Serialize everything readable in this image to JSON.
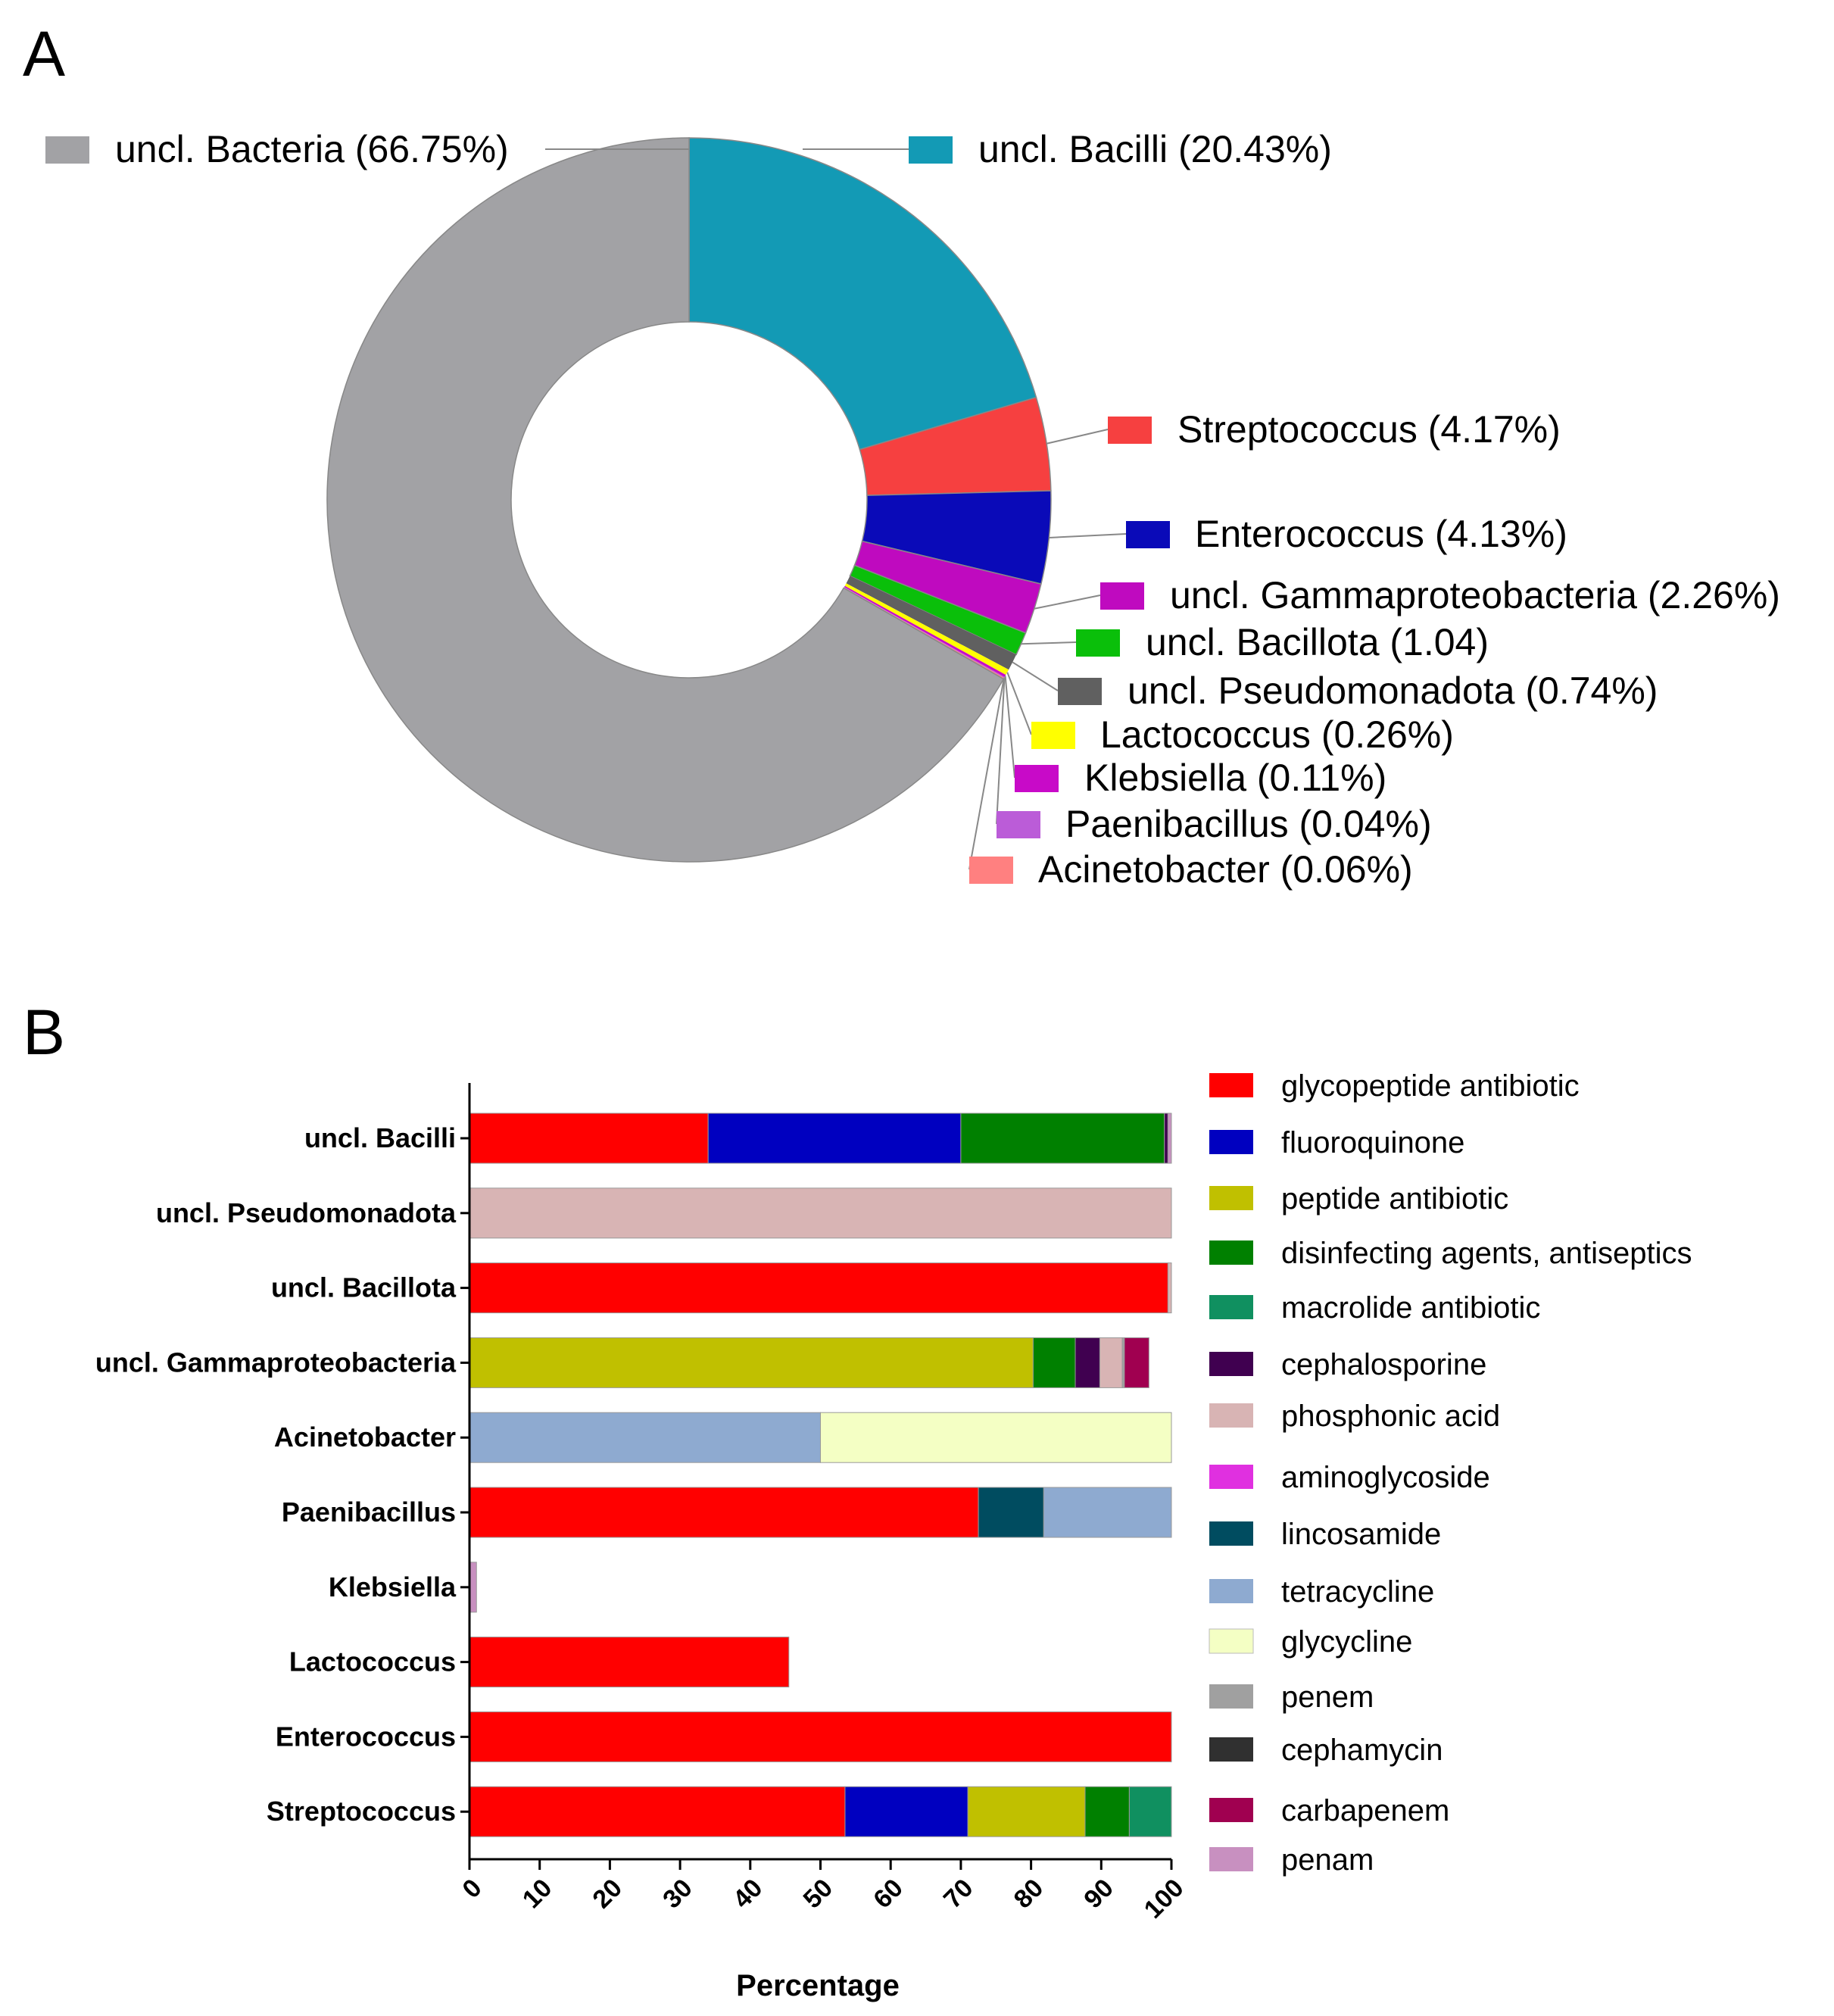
{
  "chart_data": [
    {
      "panel": "A",
      "type": "pie",
      "donut": true,
      "slices": [
        {
          "label": "uncl. Bacilli (20.43%)",
          "name": "uncl. Bacilli",
          "value": 20.43,
          "color": "#139ab5"
        },
        {
          "label": "Streptococcus (4.17%)",
          "name": "Streptococcus",
          "value": 4.17,
          "color": "#f64040"
        },
        {
          "label": "Enterococcus (4.13%)",
          "name": "Enterococcus",
          "value": 4.13,
          "color": "#0a0ab8"
        },
        {
          "label": "uncl. Gammaproteobacteria (2.26%)",
          "name": "uncl. Gammaproteobacteria",
          "value": 2.26,
          "color": "#bf0abf"
        },
        {
          "label": "uncl. Bacillota (1.04)",
          "name": "uncl. Bacillota",
          "value": 1.04,
          "color": "#0abf0a"
        },
        {
          "label": "uncl. Pseudomonadota (0.74%)",
          "name": "uncl. Pseudomonadota",
          "value": 0.74,
          "color": "#606060"
        },
        {
          "label": "Lactococcus (0.26%)",
          "name": "Lactococcus",
          "value": 0.26,
          "color": "#ffff00"
        },
        {
          "label": "Klebsiella (0.11%)",
          "name": "Klebsiella",
          "value": 0.11,
          "color": "#c80ac8"
        },
        {
          "label": "Paenibacillus (0.04%)",
          "name": "Paenibacillus",
          "value": 0.04,
          "color": "#bb5cd8"
        },
        {
          "label": "Acinetobacter (0.06%)",
          "name": "Acinetobacter",
          "value": 0.06,
          "color": "#ff8080"
        },
        {
          "label": "uncl. Bacteria (66.75%)",
          "name": "uncl. Bacteria",
          "value": 66.75,
          "color": "#a2a2a5"
        }
      ]
    },
    {
      "panel": "B",
      "type": "bar",
      "orientation": "horizontal",
      "stacked": true,
      "xlabel": "Percentage",
      "xlim": [
        0,
        100
      ],
      "xticks": [
        0,
        10,
        20,
        30,
        40,
        50,
        60,
        70,
        80,
        90,
        100
      ],
      "categories": [
        "uncl. Bacilli",
        "uncl. Pseudomonadota",
        "uncl. Bacillota",
        "uncl. Gammaproteobacteria",
        "Acinetobacter",
        "Paenibacillus",
        "Klebsiella",
        "Lactococcus",
        "Enterococcus",
        "Streptococcus"
      ],
      "series": [
        {
          "name": "glycopeptide antibiotic",
          "color": "#ff0000",
          "values": [
            34,
            0,
            99.5,
            0,
            0,
            72.5,
            0,
            45.5,
            100,
            53.5
          ]
        },
        {
          "name": "fluoroquinone",
          "color": "#0000c0",
          "values": [
            36,
            0,
            0,
            0,
            0,
            0,
            0,
            0,
            0,
            17.5
          ]
        },
        {
          "name": "peptide antibiotic",
          "color": "#c0c000",
          "values": [
            0,
            0,
            0,
            80.3,
            0,
            0,
            0,
            0,
            0,
            16.7
          ]
        },
        {
          "name": "disinfecting agents, antiseptics",
          "color": "#008000",
          "values": [
            29,
            0,
            0,
            6,
            0,
            0,
            0,
            0,
            0,
            6.3
          ]
        },
        {
          "name": "macrolide antibiotic",
          "color": "#109060",
          "values": [
            0,
            0,
            0,
            0,
            0,
            0,
            0,
            0,
            0,
            6
          ]
        },
        {
          "name": "cephalosporine",
          "color": "#400050",
          "values": [
            0.5,
            0,
            0,
            3.5,
            0,
            0,
            0,
            0,
            0,
            0
          ]
        },
        {
          "name": "phosphonic acid",
          "color": "#d8b4b4",
          "values": [
            0,
            100,
            0.5,
            3.2,
            0,
            0,
            0,
            0,
            0,
            0
          ]
        },
        {
          "name": "aminoglycoside",
          "color": "#e030e0",
          "values": [
            0,
            0,
            0,
            0,
            0,
            0,
            0,
            0,
            0,
            0
          ]
        },
        {
          "name": "lincosamide",
          "color": "#004c60",
          "values": [
            0,
            0,
            0,
            0,
            0,
            9.3,
            0,
            0,
            0,
            0
          ]
        },
        {
          "name": "tetracycline",
          "color": "#8eaad0",
          "values": [
            0,
            0,
            0,
            0,
            50,
            18.2,
            0,
            0,
            0,
            0
          ]
        },
        {
          "name": "glycycline",
          "color": "#f4ffc4",
          "values": [
            0,
            0,
            0,
            0,
            50,
            0,
            0,
            0,
            0,
            0
          ]
        },
        {
          "name": "penem",
          "color": "#a0a0a0",
          "values": [
            0,
            0,
            0,
            0.3,
            0,
            0,
            0,
            0,
            0,
            0
          ]
        },
        {
          "name": "cephamycin",
          "color": "#303030",
          "values": [
            0,
            0,
            0,
            0,
            0,
            0,
            0,
            0,
            0,
            0
          ]
        },
        {
          "name": "carbapenem",
          "color": "#a00050",
          "values": [
            0,
            0,
            0,
            3.5,
            0,
            0,
            0,
            0,
            0,
            0
          ]
        },
        {
          "name": "penam",
          "color": "#c890c0",
          "values": [
            0.5,
            0,
            0,
            0,
            0,
            0,
            1,
            0,
            0,
            0
          ]
        }
      ]
    }
  ],
  "panels": {
    "a_letter": "A",
    "b_letter": "B"
  }
}
